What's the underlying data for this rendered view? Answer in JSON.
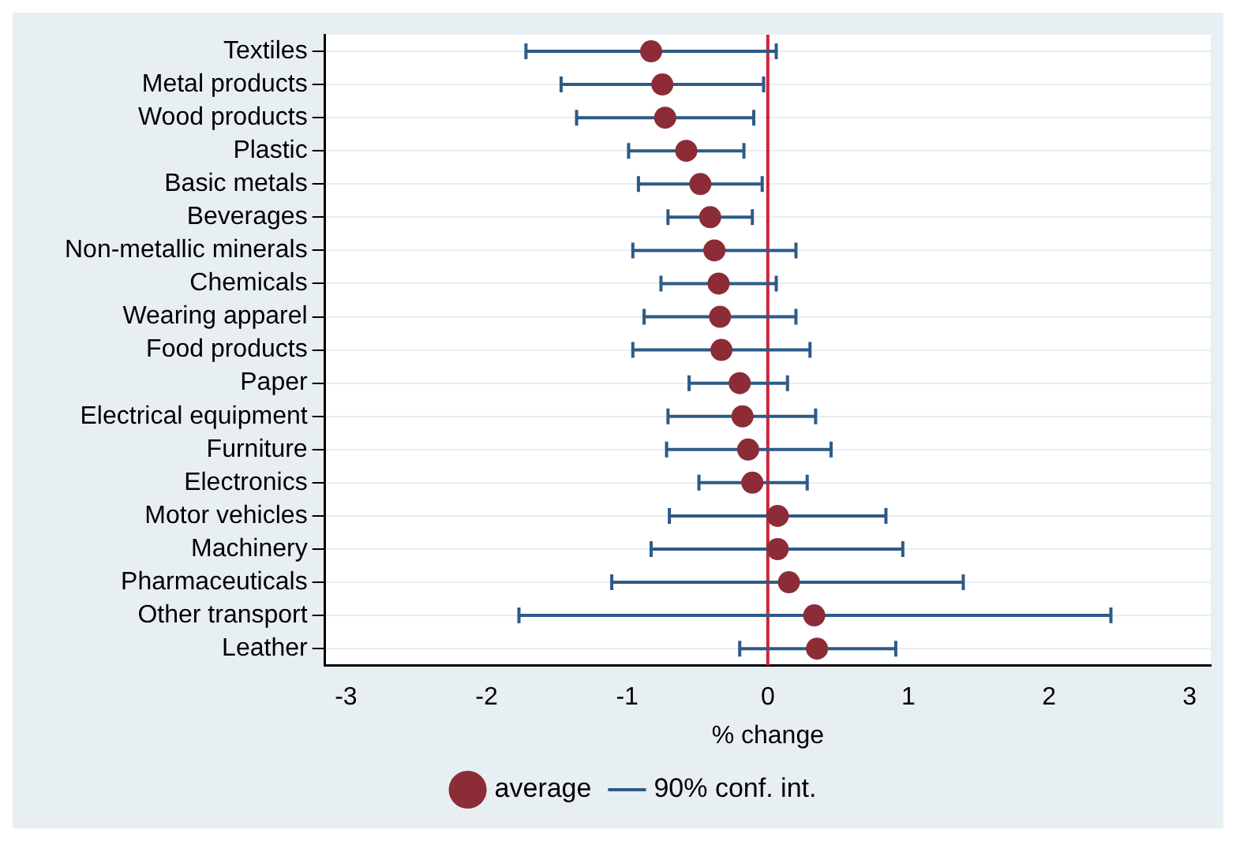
{
  "chart_data": {
    "type": "scatter",
    "orientation": "horizontal",
    "xlabel": "% change",
    "categories": [
      "Textiles",
      "Metal products",
      "Wood products",
      "Plastic",
      "Basic metals",
      "Beverages",
      "Non-metallic minerals",
      "Chemicals",
      "Wearing apparel",
      "Food products",
      "Paper",
      "Electrical equipment",
      "Furniture",
      "Electronics",
      "Motor vehicles",
      "Machinery",
      "Pharmaceuticals",
      "Other transport",
      "Leather"
    ],
    "series": [
      {
        "name": "average",
        "color": "#8b2c36",
        "values": [
          -0.83,
          -0.75,
          -0.73,
          -0.58,
          -0.48,
          -0.41,
          -0.38,
          -0.35,
          -0.34,
          -0.33,
          -0.2,
          -0.18,
          -0.14,
          -0.11,
          0.07,
          0.07,
          0.15,
          0.33,
          0.35
        ],
        "errors": [
          [
            -1.72,
            0.06
          ],
          [
            -1.47,
            -0.03
          ],
          [
            -1.36,
            -0.1
          ],
          [
            -0.99,
            -0.17
          ],
          [
            -0.92,
            -0.04
          ],
          [
            -0.71,
            -0.11
          ],
          [
            -0.96,
            0.2
          ],
          [
            -0.76,
            0.06
          ],
          [
            -0.88,
            0.2
          ],
          [
            -0.96,
            0.3
          ],
          [
            -0.56,
            0.14
          ],
          [
            -0.71,
            0.34
          ],
          [
            -0.72,
            0.45
          ],
          [
            -0.49,
            0.28
          ],
          [
            -0.7,
            0.84
          ],
          [
            -0.83,
            0.96
          ],
          [
            -1.11,
            1.39
          ],
          [
            -1.77,
            2.44
          ],
          [
            -0.2,
            0.91
          ]
        ]
      }
    ],
    "annotations": [
      "90% conf. int."
    ],
    "xlim": [
      -3.15,
      3.15
    ],
    "xticks": [
      -3,
      -2,
      -1,
      0,
      1,
      2,
      3
    ],
    "ref_lines": [
      {
        "axis": "x",
        "value": 0,
        "color": "#d0213b"
      }
    ],
    "grid": "y",
    "legend": "bottom",
    "marker": "circle"
  }
}
